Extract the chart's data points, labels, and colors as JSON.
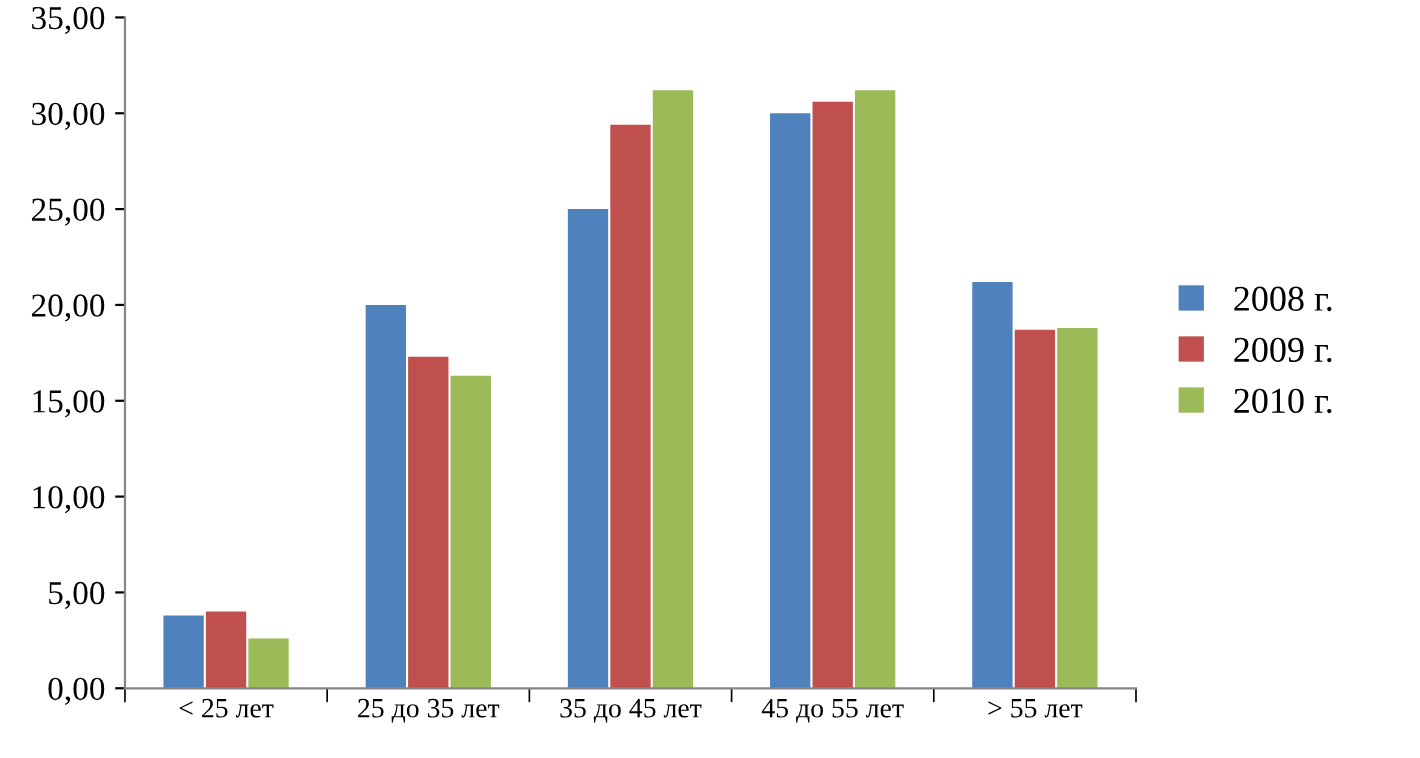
{
  "chart_data": {
    "type": "bar",
    "categories": [
      "< 25 лет",
      "25 до 35 лет",
      "35 до 45 лет",
      "45 до 55 лет",
      "> 55 лет"
    ],
    "series": [
      {
        "name": "2008 г.",
        "color": "#4f81bd",
        "values": [
          3.8,
          20.0,
          25.0,
          30.0,
          21.2
        ]
      },
      {
        "name": "2009 г.",
        "color": "#c0504d",
        "values": [
          4.0,
          17.3,
          29.4,
          30.6,
          18.7
        ]
      },
      {
        "name": "2010 г.",
        "color": "#9bbb59",
        "values": [
          2.6,
          16.3,
          31.2,
          31.2,
          18.8
        ]
      }
    ],
    "ylim": [
      0,
      35
    ],
    "yticks": [
      {
        "value": 0,
        "label": "0,00"
      },
      {
        "value": 5,
        "label": "5,00"
      },
      {
        "value": 10,
        "label": "10,00"
      },
      {
        "value": 15,
        "label": "15,00"
      },
      {
        "value": 20,
        "label": "20,00"
      },
      {
        "value": 25,
        "label": "25,00"
      },
      {
        "value": 30,
        "label": "30,00"
      },
      {
        "value": 35,
        "label": "35,00"
      }
    ],
    "grid": false,
    "legend": "right"
  }
}
